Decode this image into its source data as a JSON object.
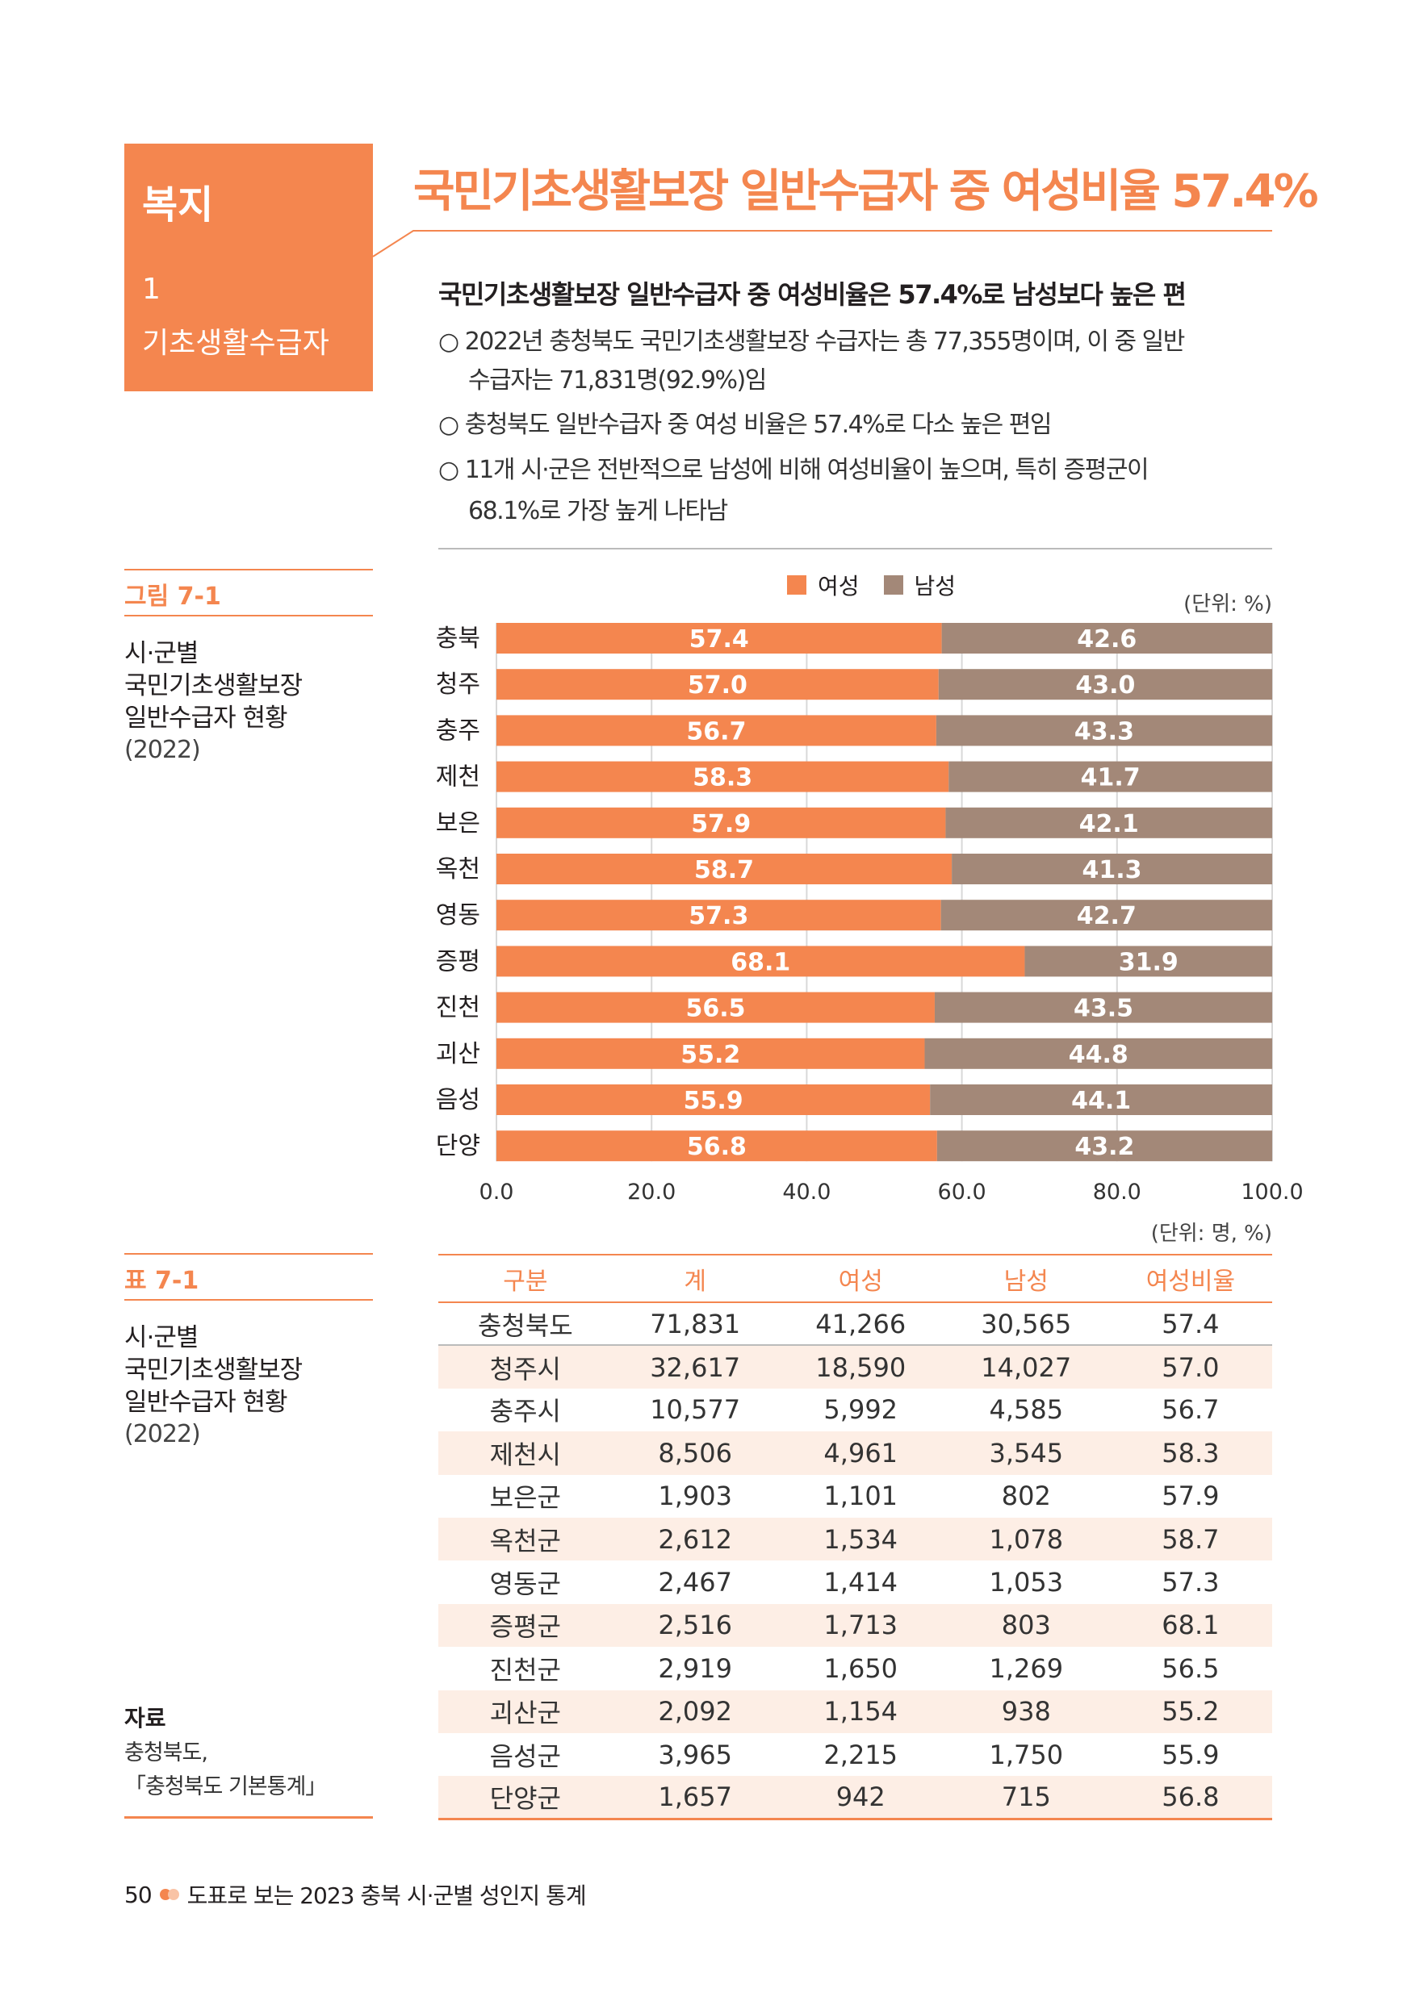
{
  "section": {
    "category": "복지",
    "number": "1",
    "name": "기초생활수급자"
  },
  "title": "국민기초생활보장 일반수급자 중 여성비율 57.4%",
  "summary": {
    "heading": "국민기초생활보장 일반수급자 중 여성비율은 57.4%로 남성보다 높은 편",
    "bullets": [
      [
        "○ 2022년 충청북도 국민기초생활보장 수급자는 총 77,355명이며, 이 중 일반",
        "수급자는 71,831명(92.9%)임"
      ],
      [
        "○ 충청북도 일반수급자 중 여성 비율은 57.4%로 다소 높은 편임"
      ],
      [
        "○ 11개 시·군은 전반적으로 남성에 비해 여성비율이 높으며, 특히 증평군이",
        "68.1%로 가장 높게 나타남"
      ]
    ]
  },
  "figure": {
    "label": "그림 7-1",
    "desc": [
      "시·군별",
      "국민기초생활보장",
      "일반수급자 현황"
    ],
    "year": "(2022)",
    "unit": "(단위: %)"
  },
  "colors": {
    "accent": "#f4864f",
    "female": "#f4864f",
    "male": "#a38878",
    "row_shade": "#fdeee5"
  },
  "chart_data": {
    "type": "bar",
    "orientation": "horizontal",
    "stacked": true,
    "categories": [
      "충북",
      "청주",
      "충주",
      "제천",
      "보은",
      "옥천",
      "영동",
      "증평",
      "진천",
      "괴산",
      "음성",
      "단양"
    ],
    "series": [
      {
        "name": "여성",
        "color": "#f4864f",
        "values": [
          57.4,
          57.0,
          56.7,
          58.3,
          57.9,
          58.7,
          57.3,
          68.1,
          56.5,
          55.2,
          55.9,
          56.8
        ]
      },
      {
        "name": "남성",
        "color": "#a38878",
        "values": [
          42.6,
          43.0,
          43.3,
          41.7,
          42.1,
          41.3,
          42.7,
          31.9,
          43.5,
          44.8,
          44.1,
          43.2
        ]
      }
    ],
    "xlim": [
      0,
      100
    ],
    "xticks": [
      "0.0",
      "20.0",
      "40.0",
      "60.0",
      "80.0",
      "100.0"
    ],
    "legend": "top",
    "grid": true
  },
  "table": {
    "label": "표 7-1",
    "desc": [
      "시·군별",
      "국민기초생활보장",
      "일반수급자 현황"
    ],
    "year": "(2022)",
    "unit": "(단위: 명, %)",
    "headers": [
      "구분",
      "계",
      "여성",
      "남성",
      "여성비율"
    ],
    "rows": [
      [
        "충청북도",
        "71,831",
        "41,266",
        "30,565",
        "57.4"
      ],
      [
        "청주시",
        "32,617",
        "18,590",
        "14,027",
        "57.0"
      ],
      [
        "충주시",
        "10,577",
        "5,992",
        "4,585",
        "56.7"
      ],
      [
        "제천시",
        "8,506",
        "4,961",
        "3,545",
        "58.3"
      ],
      [
        "보은군",
        "1,903",
        "1,101",
        "802",
        "57.9"
      ],
      [
        "옥천군",
        "2,612",
        "1,534",
        "1,078",
        "58.7"
      ],
      [
        "영동군",
        "2,467",
        "1,414",
        "1,053",
        "57.3"
      ],
      [
        "증평군",
        "2,516",
        "1,713",
        "803",
        "68.1"
      ],
      [
        "진천군",
        "2,919",
        "1,650",
        "1,269",
        "56.5"
      ],
      [
        "괴산군",
        "2,092",
        "1,154",
        "938",
        "55.2"
      ],
      [
        "음성군",
        "3,965",
        "2,215",
        "1,750",
        "55.9"
      ],
      [
        "단양군",
        "1,657",
        "942",
        "715",
        "56.8"
      ]
    ]
  },
  "source": {
    "heading": "자료",
    "lines": [
      "충청북도,",
      "「충청북도 기본통계」"
    ]
  },
  "footer": {
    "page": "50",
    "text": "도표로 보는 2023 충북 시·군별 성인지 통계"
  }
}
